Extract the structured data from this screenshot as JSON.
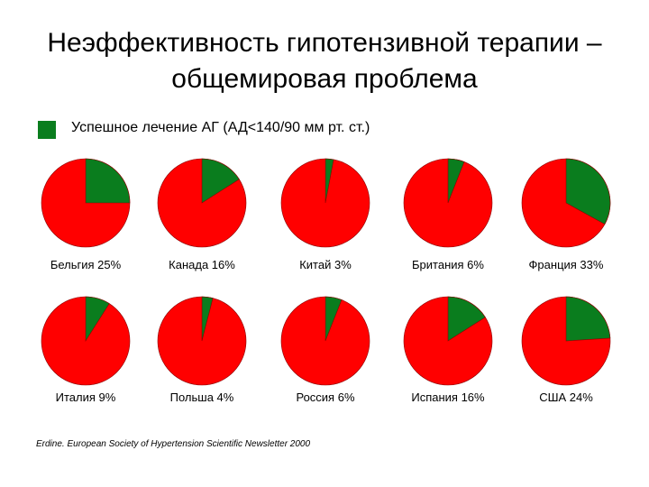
{
  "title": {
    "line1": "Неэффективность гипотензивной терапии –",
    "line2": "общемировая проблема"
  },
  "legend": {
    "label": "Успешное лечение АГ (АД<140/90 мм рт. ст.)"
  },
  "colors": {
    "success": "#0a7d1e",
    "remainder": "#ff0000",
    "outline": "#8a0000"
  },
  "source": "Erdine. European Society of Hypertension Scientific Newsletter 2000",
  "chart_data": {
    "type": "pie",
    "title": "Неэффективность гипотензивной терапии – общемировая проблема",
    "legend": [
      "Успешное лечение АГ (АД<140/90 мм рт. ст.)"
    ],
    "pies": [
      {
        "country": "Бельгия",
        "value": 25,
        "label": "Бельгия 25%"
      },
      {
        "country": "Канада",
        "value": 16,
        "label": "Канада 16%"
      },
      {
        "country": "Китай",
        "value": 3,
        "label": "Китай 3%"
      },
      {
        "country": "Британия",
        "value": 6,
        "label": "Британия 6%"
      },
      {
        "country": "Франция",
        "value": 33,
        "label": "Франция 33%"
      },
      {
        "country": "Италия",
        "value": 9,
        "label": "Италия 9%"
      },
      {
        "country": "Польша",
        "value": 4,
        "label": "Польша 4%"
      },
      {
        "country": "Россия",
        "value": 6,
        "label": "Россия 6%"
      },
      {
        "country": "Испания",
        "value": 16,
        "label": "Испания 16%"
      },
      {
        "country": "США",
        "value": 24,
        "label": "США 24%"
      }
    ]
  }
}
